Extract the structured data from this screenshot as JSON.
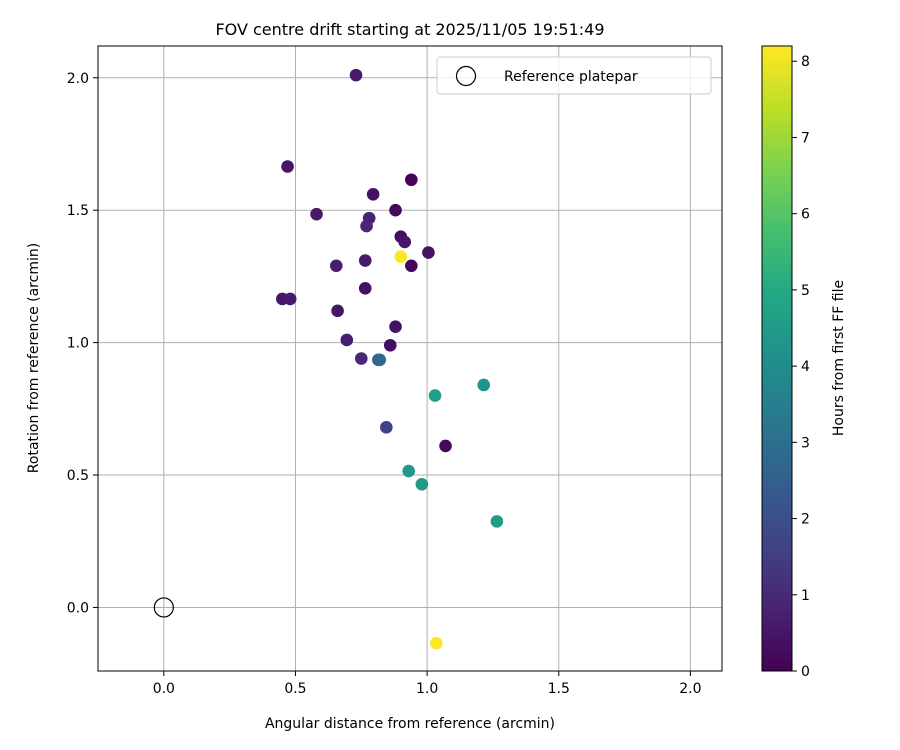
{
  "chart_data": {
    "type": "scatter",
    "title": "FOV centre drift starting at 2025/11/05 19:51:49",
    "xlabel": "Angular distance from reference (arcmin)",
    "ylabel": "Rotation from reference (arcmin)",
    "xlim": [
      -0.25,
      2.12
    ],
    "ylim": [
      -0.24,
      2.12
    ],
    "xticks": [
      0.0,
      0.5,
      1.0,
      1.5,
      2.0
    ],
    "xtick_labels": [
      "0.0",
      "0.5",
      "1.0",
      "1.5",
      "2.0"
    ],
    "yticks": [
      0.0,
      0.5,
      1.0,
      1.5,
      2.0
    ],
    "ytick_labels": [
      "0.0",
      "0.5",
      "1.0",
      "1.5",
      "2.0"
    ],
    "grid": true,
    "legend": {
      "position": "top-right",
      "label": "Reference platepar"
    },
    "reference_point": {
      "x": 0.0,
      "y": 0.0
    },
    "colorbar": {
      "label": "Hours from first FF file",
      "colormap": "viridis",
      "range": [
        0,
        8.2
      ],
      "ticks": [
        0,
        1,
        2,
        3,
        4,
        5,
        6,
        7,
        8
      ],
      "tick_labels": [
        "0",
        "1",
        "2",
        "3",
        "4",
        "5",
        "6",
        "7",
        "8"
      ]
    },
    "points": [
      {
        "x": 0.73,
        "y": 2.01,
        "hours": 0.6
      },
      {
        "x": 0.47,
        "y": 1.665,
        "hours": 0.5
      },
      {
        "x": 0.94,
        "y": 1.615,
        "hours": 0.1
      },
      {
        "x": 0.795,
        "y": 1.56,
        "hours": 0.4
      },
      {
        "x": 0.58,
        "y": 1.485,
        "hours": 0.6
      },
      {
        "x": 0.88,
        "y": 1.5,
        "hours": 0.2
      },
      {
        "x": 0.78,
        "y": 1.47,
        "hours": 0.8
      },
      {
        "x": 0.77,
        "y": 1.44,
        "hours": 0.9
      },
      {
        "x": 0.9,
        "y": 1.4,
        "hours": 0.3
      },
      {
        "x": 0.915,
        "y": 1.38,
        "hours": 0.5
      },
      {
        "x": 1.005,
        "y": 1.34,
        "hours": 0.4
      },
      {
        "x": 0.9,
        "y": 1.325,
        "hours": 8.2
      },
      {
        "x": 0.765,
        "y": 1.31,
        "hours": 0.6
      },
      {
        "x": 0.655,
        "y": 1.29,
        "hours": 0.7
      },
      {
        "x": 0.94,
        "y": 1.29,
        "hours": 0.2
      },
      {
        "x": 0.765,
        "y": 1.205,
        "hours": 0.4
      },
      {
        "x": 0.45,
        "y": 1.165,
        "hours": 0.5
      },
      {
        "x": 0.48,
        "y": 1.165,
        "hours": 0.6
      },
      {
        "x": 0.66,
        "y": 1.12,
        "hours": 0.5
      },
      {
        "x": 0.88,
        "y": 1.06,
        "hours": 0.4
      },
      {
        "x": 0.695,
        "y": 1.01,
        "hours": 0.7
      },
      {
        "x": 0.86,
        "y": 0.99,
        "hours": 0.3
      },
      {
        "x": 0.75,
        "y": 0.94,
        "hours": 1.0
      },
      {
        "x": 0.815,
        "y": 0.935,
        "hours": 2.0
      },
      {
        "x": 0.82,
        "y": 0.935,
        "hours": 2.8
      },
      {
        "x": 1.03,
        "y": 0.8,
        "hours": 4.6
      },
      {
        "x": 1.215,
        "y": 0.84,
        "hours": 4.3
      },
      {
        "x": 0.845,
        "y": 0.68,
        "hours": 1.6
      },
      {
        "x": 1.07,
        "y": 0.61,
        "hours": 0.2
      },
      {
        "x": 0.93,
        "y": 0.515,
        "hours": 4.4
      },
      {
        "x": 0.98,
        "y": 0.465,
        "hours": 4.5
      },
      {
        "x": 1.265,
        "y": 0.325,
        "hours": 4.5
      },
      {
        "x": 1.035,
        "y": -0.135,
        "hours": 8.2
      }
    ]
  }
}
